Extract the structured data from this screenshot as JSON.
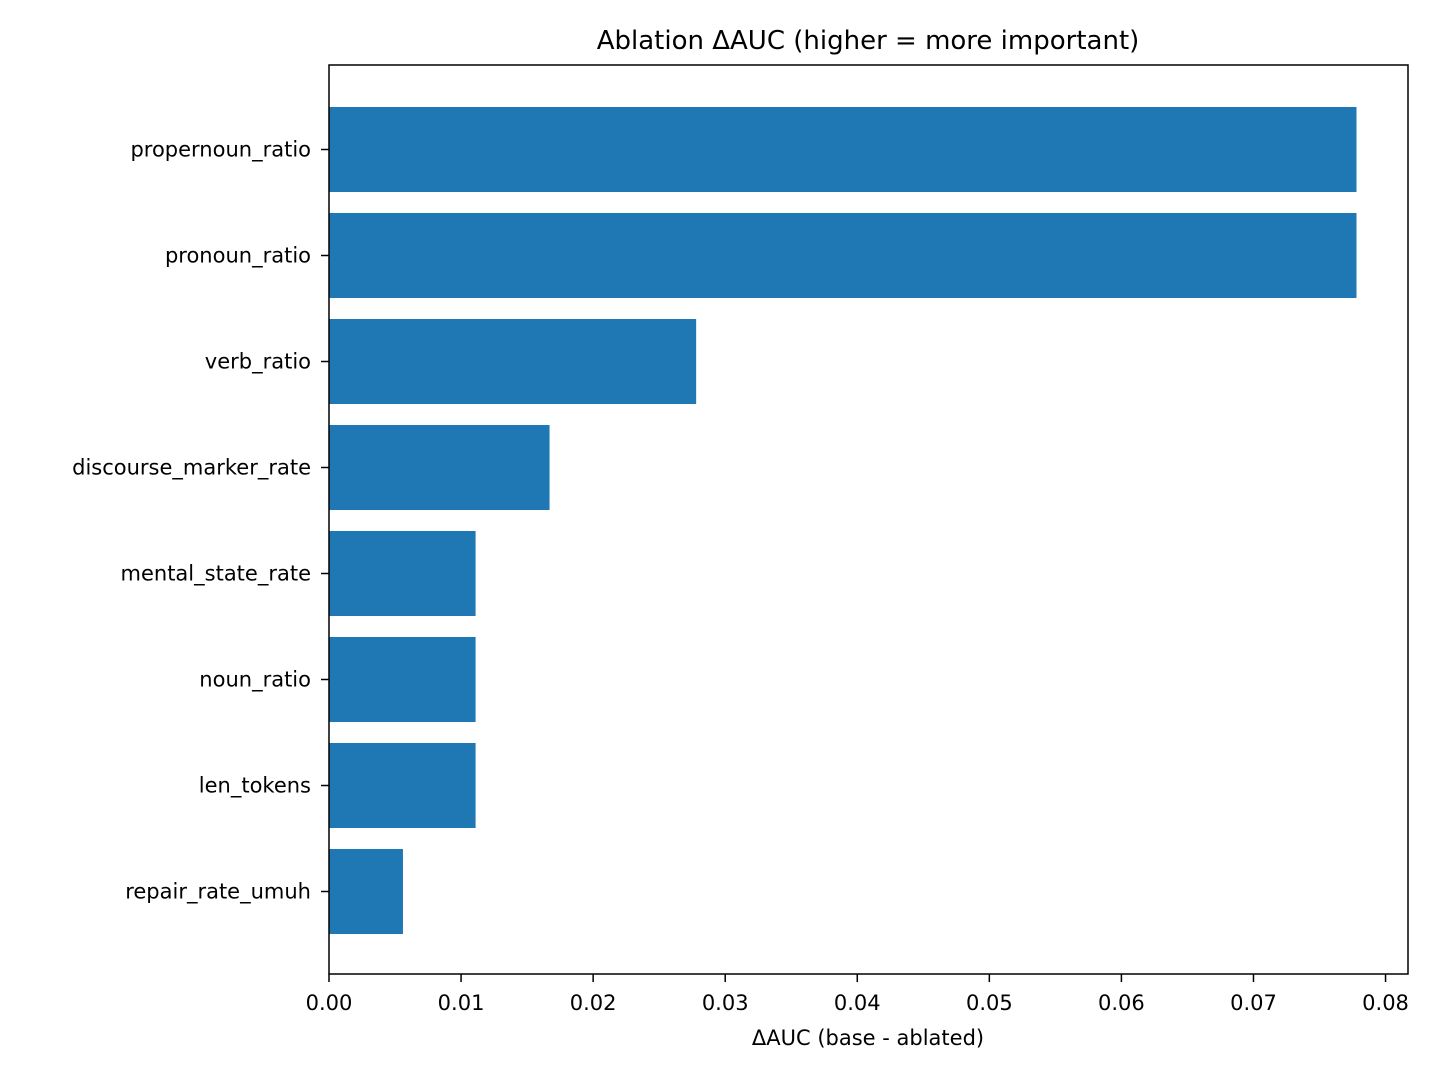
{
  "chart_data": {
    "type": "bar",
    "orientation": "horizontal",
    "title": "Ablation ΔAUC (higher = more important)",
    "xlabel": "ΔAUC (base - ablated)",
    "ylabel": "",
    "categories": [
      "propernoun_ratio",
      "pronoun_ratio",
      "verb_ratio",
      "discourse_marker_rate",
      "mental_state_rate",
      "noun_ratio",
      "len_tokens",
      "repair_rate_umuh"
    ],
    "values": [
      0.0778,
      0.0778,
      0.0278,
      0.0167,
      0.0111,
      0.0111,
      0.0111,
      0.0056
    ],
    "xlim": [
      0.0,
      0.0817
    ],
    "xticks": [
      0.0,
      0.01,
      0.02,
      0.03,
      0.04,
      0.05,
      0.06,
      0.07,
      0.08
    ],
    "xtick_labels": [
      "0.00",
      "0.01",
      "0.02",
      "0.03",
      "0.04",
      "0.05",
      "0.06",
      "0.07",
      "0.08"
    ],
    "grid": false,
    "legend": "none",
    "bar_color": "#1f77b4"
  }
}
